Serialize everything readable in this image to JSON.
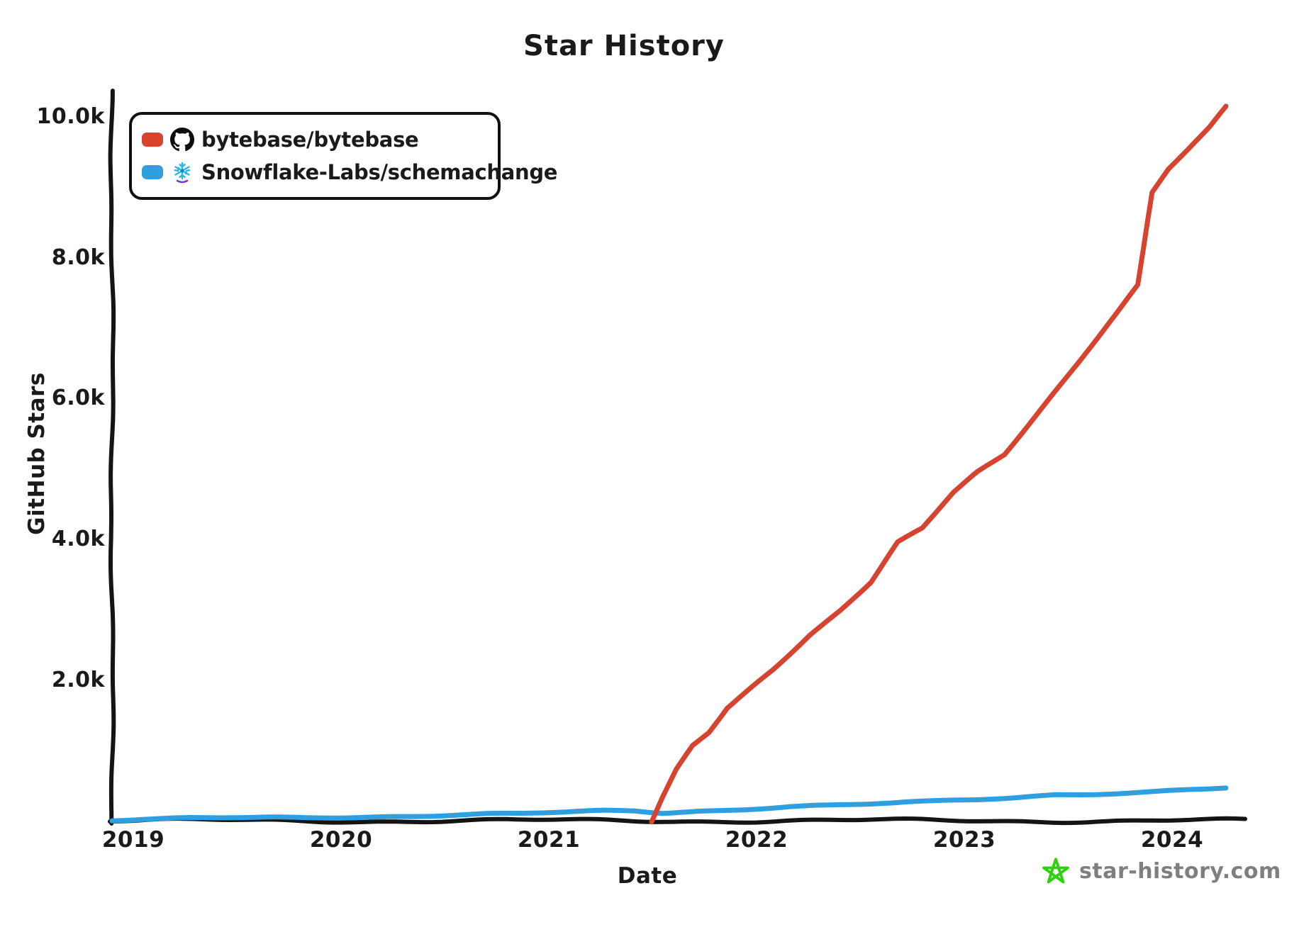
{
  "title": "Star History",
  "watermark": {
    "text": "star-history.com",
    "star_color": "#2ed10e",
    "text_color": "#7f7f7f"
  },
  "legend": {
    "items": [
      {
        "label": "bytebase/bytebase",
        "color": "#d6432e",
        "icon": "github-octocat"
      },
      {
        "label": "Snowflake-Labs/schemachange",
        "color": "#2f9fe0",
        "icon": "snowflake"
      }
    ]
  },
  "colors": {
    "axis": "#141414",
    "text": "#1a1a1a",
    "red_series": "#d6432e",
    "blue_series": "#2f9fe0",
    "snowflake_blue": "#29b5e8",
    "snowflake_purple": "#7a3ac8"
  },
  "chart_data": {
    "type": "line",
    "title": "Star History",
    "xlabel": "Date",
    "ylabel": "GitHub Stars",
    "x_ticks": [
      "2019",
      "2020",
      "2021",
      "2022",
      "2023",
      "2024"
    ],
    "y_ticks": [
      "2.0k",
      "4.0k",
      "6.0k",
      "8.0k",
      "10.0k"
    ],
    "y_tick_values": [
      2000,
      4000,
      6000,
      8000,
      10000
    ],
    "xlim": [
      2018.9,
      2024.42
    ],
    "ylim": [
      0,
      10300
    ],
    "grid": false,
    "legend_position": "top-left",
    "style": "xkcd-hand-drawn",
    "series": [
      {
        "name": "bytebase/bytebase",
        "color": "#d6432e",
        "points": [
          [
            2021.53,
            0
          ],
          [
            2021.58,
            320
          ],
          [
            2021.65,
            720
          ],
          [
            2021.73,
            1060
          ],
          [
            2021.81,
            1250
          ],
          [
            2021.9,
            1600
          ],
          [
            2022.0,
            1850
          ],
          [
            2022.12,
            2150
          ],
          [
            2022.3,
            2650
          ],
          [
            2022.45,
            3000
          ],
          [
            2022.6,
            3400
          ],
          [
            2022.73,
            3950
          ],
          [
            2022.85,
            4150
          ],
          [
            2023.0,
            4650
          ],
          [
            2023.12,
            4950
          ],
          [
            2023.25,
            5200
          ],
          [
            2023.4,
            5750
          ],
          [
            2023.55,
            6300
          ],
          [
            2023.7,
            6850
          ],
          [
            2023.81,
            7250
          ],
          [
            2023.9,
            7600
          ],
          [
            2023.97,
            8900
          ],
          [
            2024.05,
            9250
          ],
          [
            2024.15,
            9550
          ],
          [
            2024.25,
            9850
          ],
          [
            2024.33,
            10150
          ]
        ]
      },
      {
        "name": "Snowflake-Labs/schemachange",
        "color": "#2f9fe0",
        "points": [
          [
            2018.9,
            15
          ],
          [
            2019.0,
            22
          ],
          [
            2019.2,
            32
          ],
          [
            2019.5,
            45
          ],
          [
            2019.8,
            55
          ],
          [
            2020.0,
            65
          ],
          [
            2020.3,
            78
          ],
          [
            2020.6,
            92
          ],
          [
            2020.9,
            105
          ],
          [
            2021.1,
            120
          ],
          [
            2021.3,
            145
          ],
          [
            2021.45,
            150
          ],
          [
            2021.58,
            125
          ],
          [
            2021.75,
            150
          ],
          [
            2022.0,
            185
          ],
          [
            2022.2,
            210
          ],
          [
            2022.4,
            225
          ],
          [
            2022.55,
            235
          ],
          [
            2022.7,
            250
          ],
          [
            2022.9,
            275
          ],
          [
            2023.1,
            305
          ],
          [
            2023.3,
            340
          ],
          [
            2023.5,
            385
          ],
          [
            2023.65,
            395
          ],
          [
            2023.8,
            410
          ],
          [
            2024.0,
            430
          ],
          [
            2024.15,
            450
          ],
          [
            2024.33,
            470
          ]
        ]
      }
    ]
  }
}
